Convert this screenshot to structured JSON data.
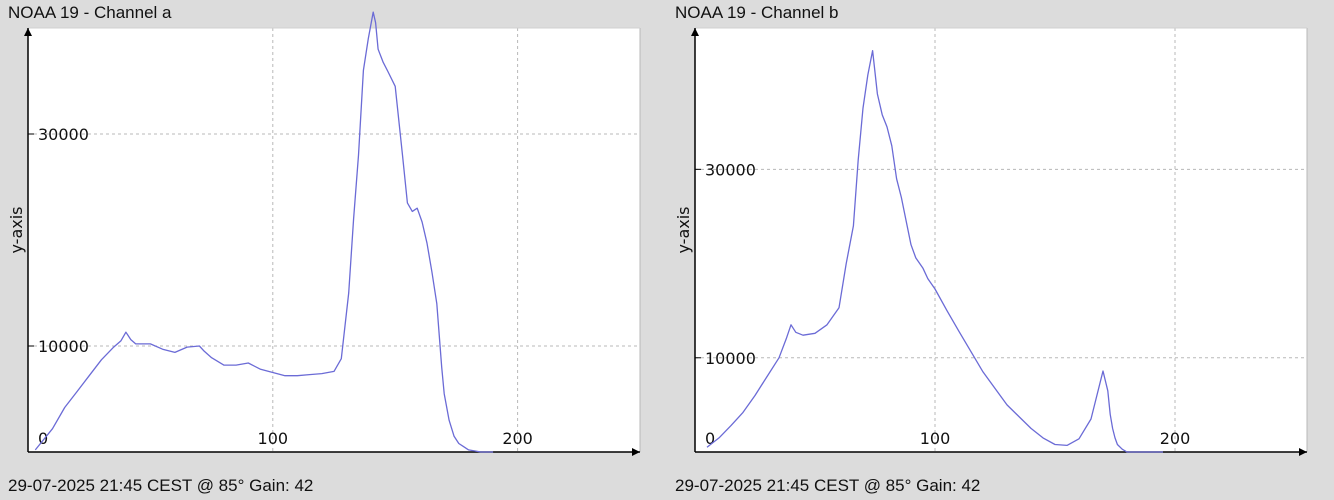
{
  "chart_data": [
    {
      "type": "line",
      "title": "NOAA 19 - Channel a",
      "footer": "29-07-2025 21:45 CEST @ 85° Gain: 42",
      "xlabel": "",
      "ylabel": "y-axis",
      "xlim": [
        0,
        250
      ],
      "ylim": [
        0,
        40000
      ],
      "x_ticks": [
        0,
        100,
        200
      ],
      "y_ticks": [
        10000,
        30000
      ],
      "x_tick_labels": [
        "0",
        "100",
        "200"
      ],
      "y_tick_labels": [
        "10000",
        "30000"
      ],
      "grid": true,
      "line_color": "#6b6bd6",
      "series": [
        {
          "x": [
            3,
            10,
            15,
            20,
            25,
            30,
            35,
            38,
            40,
            42,
            44,
            46,
            50,
            55,
            60,
            65,
            70,
            72,
            75,
            80,
            85,
            90,
            95,
            100,
            105,
            110,
            115,
            120,
            125,
            128,
            131,
            133,
            135,
            137,
            139,
            141,
            142,
            143,
            145,
            147,
            150,
            153,
            155,
            157,
            159,
            161,
            163,
            165,
            167,
            169,
            170,
            172,
            174,
            176,
            178,
            180,
            185,
            188,
            190
          ],
          "y": [
            200,
            2200,
            4200,
            5700,
            7200,
            8700,
            9900,
            10500,
            11300,
            10600,
            10200,
            10200,
            10200,
            9700,
            9400,
            9900,
            10000,
            9500,
            8900,
            8200,
            8200,
            8400,
            7800,
            7500,
            7200,
            7200,
            7300,
            7400,
            7600,
            8800,
            15000,
            22000,
            28000,
            36000,
            39000,
            41500,
            40500,
            38000,
            36800,
            35900,
            34500,
            28000,
            23500,
            22700,
            23000,
            21700,
            19700,
            17000,
            14000,
            8000,
            5500,
            3000,
            1500,
            800,
            500,
            200,
            0,
            0,
            0
          ]
        }
      ]
    },
    {
      "type": "line",
      "title": "NOAA 19 - Channel b",
      "footer": "29-07-2025 21:45 CEST @ 85° Gain: 42",
      "xlabel": "",
      "ylabel": "y-axis",
      "xlim": [
        0,
        255
      ],
      "ylim": [
        0,
        45000
      ],
      "x_ticks": [
        0,
        100,
        200
      ],
      "y_ticks": [
        10000,
        30000
      ],
      "x_tick_labels": [
        "0",
        "100",
        "200"
      ],
      "y_tick_labels": [
        "10000",
        "30000"
      ],
      "grid": true,
      "line_color": "#6b6bd6",
      "series": [
        {
          "x": [
            5,
            10,
            15,
            20,
            25,
            30,
            35,
            38,
            40,
            42,
            45,
            50,
            55,
            60,
            63,
            66,
            68,
            70,
            72,
            74,
            76,
            78,
            80,
            82,
            84,
            86,
            88,
            90,
            92,
            95,
            97,
            100,
            105,
            110,
            120,
            130,
            140,
            145,
            150,
            155,
            160,
            165,
            170,
            172,
            173,
            174,
            175,
            176,
            178,
            180,
            185,
            190,
            195
          ],
          "y": [
            500,
            1500,
            2800,
            4200,
            6000,
            8000,
            10000,
            12000,
            13500,
            12700,
            12400,
            12600,
            13500,
            15300,
            20000,
            24000,
            31000,
            36500,
            40000,
            42600,
            38000,
            35800,
            34500,
            32500,
            29000,
            27000,
            24500,
            22000,
            20600,
            19500,
            18400,
            17300,
            15000,
            12800,
            8500,
            5000,
            2500,
            1500,
            800,
            700,
            1400,
            3500,
            8600,
            6500,
            4000,
            2500,
            1500,
            800,
            300,
            0,
            0,
            0,
            0
          ]
        }
      ]
    }
  ]
}
